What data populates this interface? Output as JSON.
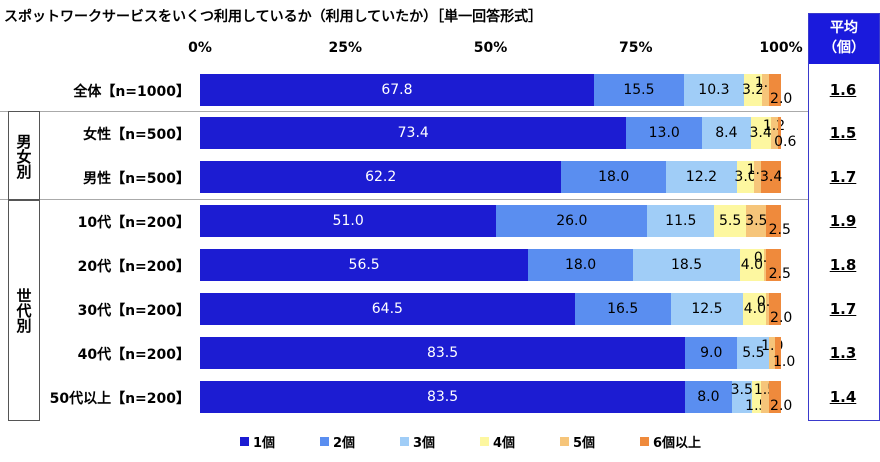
{
  "chart_data": {
    "type": "bar",
    "orientation": "horizontal",
    "stacked": true,
    "title": "スポットワークサービスをいくつ利用しているか（利用していたか）［単一回答形式］",
    "xlim": [
      0,
      100
    ],
    "x_ticks": [
      "0%",
      "25%",
      "50%",
      "75%",
      "100%"
    ],
    "groups": [
      {
        "label": "男女別",
        "rows": [
          1,
          2
        ]
      },
      {
        "label": "世代別",
        "rows": [
          3,
          4,
          5,
          6,
          7
        ]
      }
    ],
    "categories": [
      "全体【n=1000】",
      "女性【n=500】",
      "男性【n=500】",
      "10代【n=200】",
      "20代【n=200】",
      "30代【n=200】",
      "40代【n=200】",
      "50代以上【n=200】"
    ],
    "series": [
      {
        "name": "1個",
        "color": "#1c1cd2",
        "values": [
          67.8,
          73.4,
          62.2,
          51.0,
          56.5,
          64.5,
          83.5,
          83.5
        ]
      },
      {
        "name": "2個",
        "color": "#5a8ef0",
        "values": [
          15.5,
          13.0,
          18.0,
          26.0,
          18.0,
          16.5,
          9.0,
          8.0
        ]
      },
      {
        "name": "3個",
        "color": "#a0cdf7",
        "values": [
          10.3,
          8.4,
          12.2,
          11.5,
          18.5,
          12.5,
          5.5,
          3.5
        ]
      },
      {
        "name": "4個",
        "color": "#fdf7a0",
        "values": [
          3.2,
          3.4,
          3.0,
          5.5,
          4.0,
          4.0,
          0,
          1.5
        ]
      },
      {
        "name": "5個",
        "color": "#f6c57a",
        "values": [
          1.2,
          1.2,
          1.2,
          3.5,
          0.5,
          0.5,
          1.0,
          1.5
        ]
      },
      {
        "name": "6個以上",
        "color": "#ef8a3c",
        "values": [
          2.0,
          0.6,
          3.4,
          2.5,
          2.5,
          2.0,
          1.0,
          2.0
        ]
      }
    ],
    "mean": {
      "header": "平均\n（個）",
      "header_line1": "平均",
      "header_line2": "（個）",
      "values": [
        "1.6",
        "1.5",
        "1.7",
        "1.9",
        "1.8",
        "1.7",
        "1.3",
        "1.4"
      ]
    },
    "legend": "bottom"
  }
}
